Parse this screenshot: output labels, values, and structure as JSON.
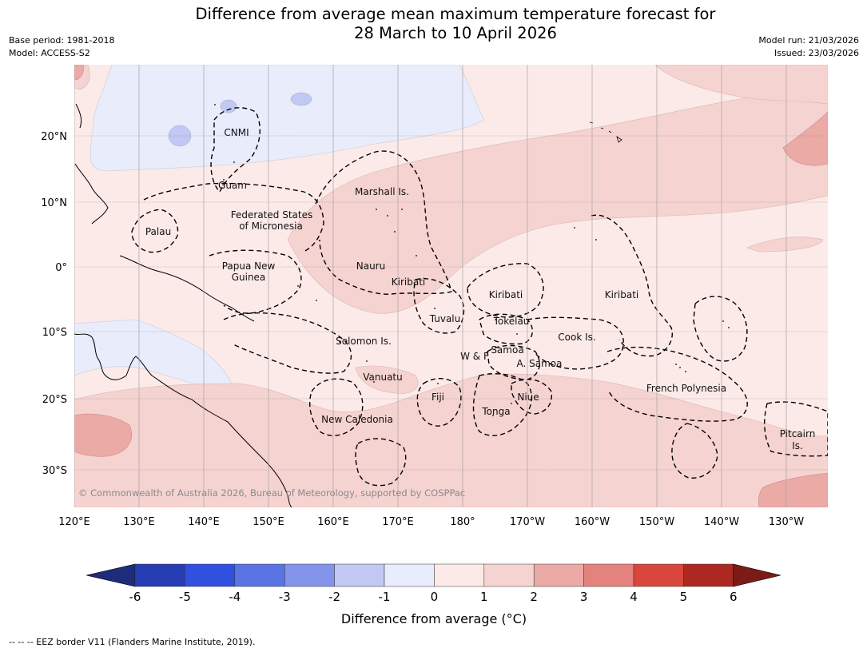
{
  "header": {
    "title_line1": "Difference from average mean maximum temperature forecast for",
    "title_line2": "28 March to 10 April 2026",
    "base_period": "Base period: 1981-2018",
    "model": "Model: ACCESS-S2",
    "model_run": "Model run: 21/03/2026",
    "issued": "Issued: 23/03/2026"
  },
  "map": {
    "lon_ticks": [
      "120°E",
      "130°E",
      "140°E",
      "150°E",
      "160°E",
      "170°E",
      "180°",
      "170°W",
      "160°W",
      "150°W",
      "140°W",
      "130°W"
    ],
    "lat_ticks": [
      "20°N",
      "10°N",
      "0°",
      "10°S",
      "20°S",
      "30°S"
    ],
    "region_labels": [
      "CNMI",
      "Guam",
      "Marshall Is.",
      "Federated States",
      "of Micronesia",
      "Palau",
      "Papua New",
      "Guinea",
      "Nauru",
      "Kiribati",
      "Kiribati",
      "Kiribati",
      "Tuvalu",
      "Tokelau",
      "Cook Is.",
      "Solomon Is.",
      "W & F",
      "Samoa",
      "A. Samoa",
      "Vanuatu",
      "Fiji",
      "Niue",
      "Tonga",
      "French Polynesia",
      "New Caledonia",
      "Pitcairn",
      "Is."
    ],
    "copyright": "© Commonwealth of Australia 2026, Bureau of Meteorology, supported by COSPPac"
  },
  "colorbar": {
    "ticks": [
      "-6",
      "-5",
      "-4",
      "-3",
      "-2",
      "-1",
      "0",
      "1",
      "2",
      "3",
      "4",
      "5",
      "6"
    ],
    "colors": [
      "#1e2c7c",
      "#273db3",
      "#3050e0",
      "#5a74e3",
      "#8494ea",
      "#c0c8f3",
      "#e8ecfb",
      "#fbeae8",
      "#f5d3d0",
      "#ebaaa6",
      "#e4837e",
      "#d9463e",
      "#ad2820",
      "#7a1b17"
    ],
    "label": "Difference from average (°C)"
  },
  "footer": {
    "eez_note": "--  --  -- EEZ border V11 (Flanders Marine Institute, 2019)."
  }
}
